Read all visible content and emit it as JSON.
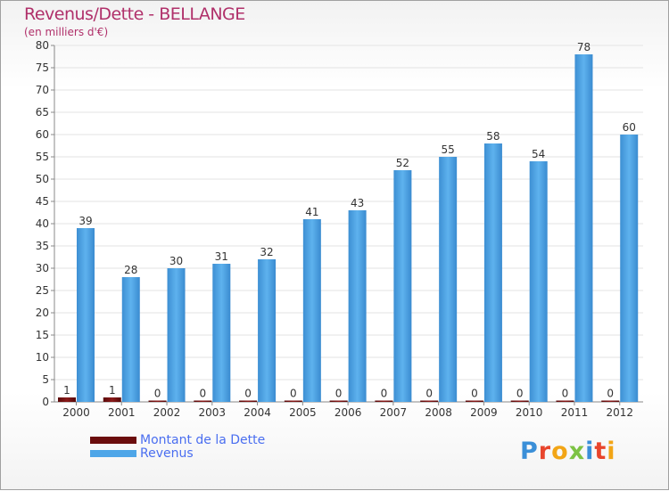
{
  "chart_data": {
    "type": "bar",
    "title": "Revenus/Dette - BELLANGE",
    "subtitle": "(en milliers d'€)",
    "categories": [
      "2000",
      "2001",
      "2002",
      "2003",
      "2004",
      "2005",
      "2006",
      "2007",
      "2008",
      "2009",
      "2010",
      "2011",
      "2012"
    ],
    "series": [
      {
        "name": "Montant de la Dette",
        "color": "#6b0d0d",
        "values": [
          1,
          1,
          0,
          0,
          0,
          0,
          0,
          0,
          0,
          0,
          0,
          0,
          0
        ]
      },
      {
        "name": "Revenus",
        "color": "#4ea6e8",
        "values": [
          39,
          28,
          30,
          31,
          32,
          41,
          43,
          52,
          55,
          58,
          54,
          78,
          60
        ]
      }
    ],
    "ylim": [
      0,
      80
    ],
    "yticks": [
      0,
      5,
      10,
      15,
      20,
      25,
      30,
      35,
      40,
      45,
      50,
      55,
      60,
      65,
      70,
      75,
      80
    ],
    "grid": true,
    "legend_position": "bottom-left"
  },
  "logo": {
    "text": "Proxiti",
    "colors": [
      "#3a8fd8",
      "#e8452c",
      "#f2a516",
      "#7cc243",
      "#3a8fd8",
      "#e8452c",
      "#f2a516"
    ]
  }
}
